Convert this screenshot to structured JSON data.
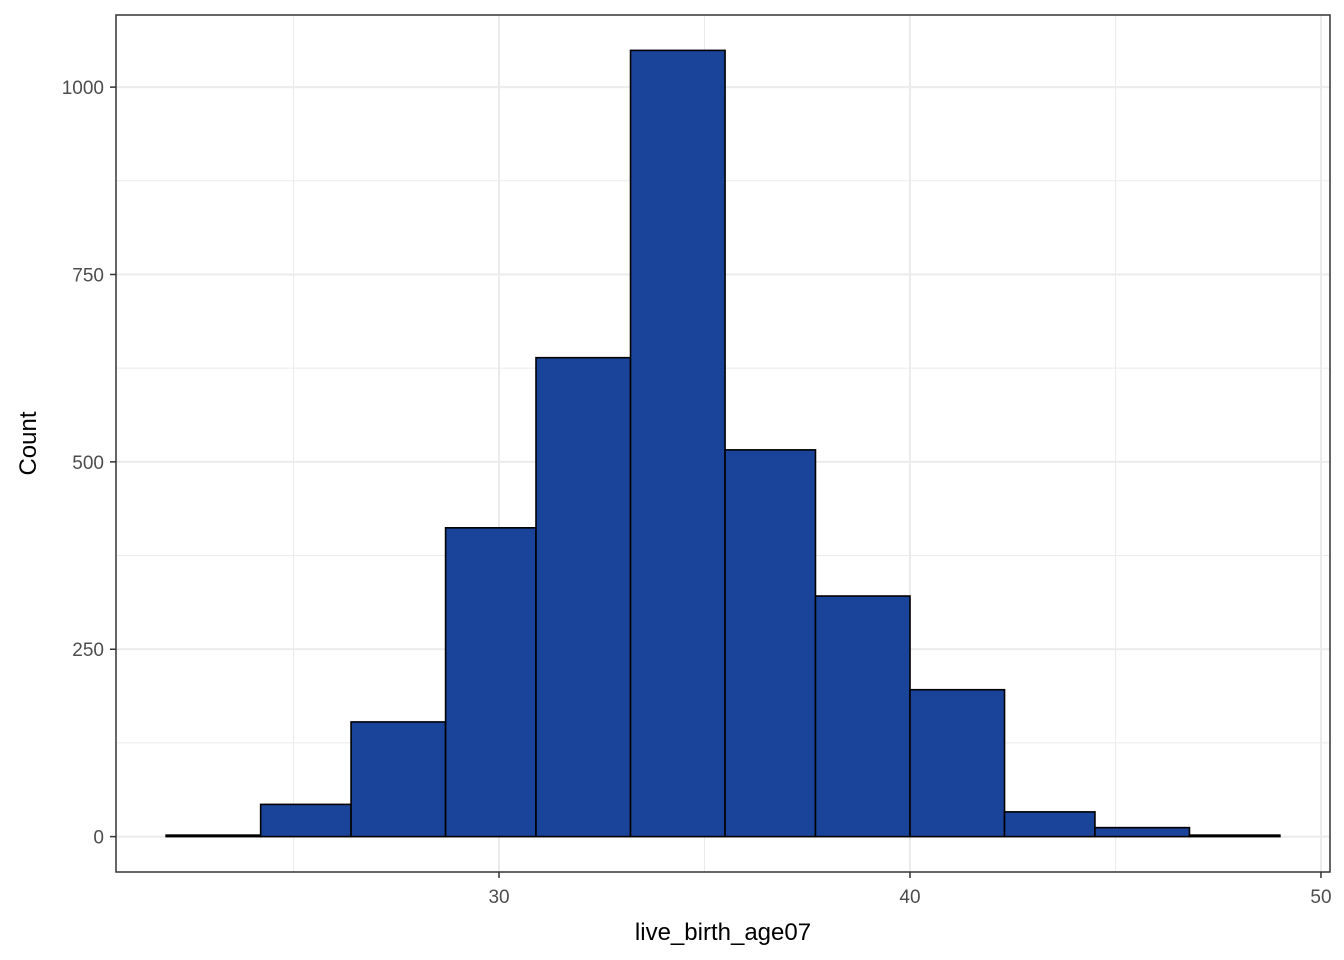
{
  "chart_data": {
    "type": "bar",
    "subtype": "histogram",
    "title": "",
    "xlabel": "live_birth_age07",
    "ylabel": "Count",
    "bins": [
      {
        "x0": 21.9,
        "x1": 24.2,
        "count": 2
      },
      {
        "x0": 24.2,
        "x1": 26.4,
        "count": 43
      },
      {
        "x0": 26.4,
        "x1": 28.7,
        "count": 153
      },
      {
        "x0": 28.7,
        "x1": 30.9,
        "count": 412
      },
      {
        "x0": 30.9,
        "x1": 33.2,
        "count": 639
      },
      {
        "x0": 33.2,
        "x1": 35.5,
        "count": 1049
      },
      {
        "x0": 35.5,
        "x1": 37.7,
        "count": 516
      },
      {
        "x0": 37.7,
        "x1": 40.0,
        "count": 321
      },
      {
        "x0": 40.0,
        "x1": 42.3,
        "count": 196
      },
      {
        "x0": 42.3,
        "x1": 44.5,
        "count": 33
      },
      {
        "x0": 44.5,
        "x1": 46.8,
        "count": 12
      },
      {
        "x0": 46.8,
        "x1": 49.0,
        "count": 2
      }
    ],
    "xlim": [
      21.9,
      49.0
    ],
    "ylim": [
      0,
      1049
    ],
    "x_ticks": [
      30,
      40,
      50
    ],
    "x_tick_labels": [
      "30",
      "40",
      "50"
    ],
    "x_minor_ticks": [
      25,
      35,
      45
    ],
    "y_ticks": [
      0,
      250,
      500,
      750,
      1000
    ],
    "y_tick_labels": [
      "0",
      "250",
      "500",
      "750",
      "1000"
    ],
    "y_minor_ticks": [
      125,
      375,
      625,
      875
    ],
    "grid": true,
    "legend": "none",
    "colors": {
      "bar_fill": "#1a4499",
      "bar_stroke": "#000000",
      "grid": "#ebebeb",
      "panel_border": "#333333",
      "tick_text": "#4d4d4d",
      "title_text": "#000000"
    }
  }
}
